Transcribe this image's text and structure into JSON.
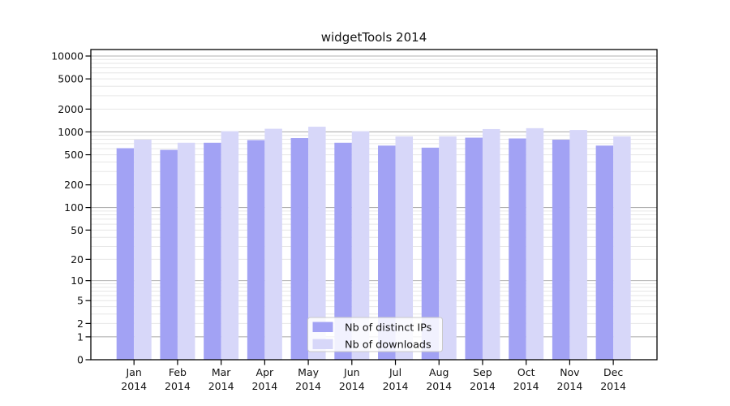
{
  "chart_data": {
    "type": "bar",
    "title": "widgetTools 2014",
    "categories": [
      "Jan 2014",
      "Feb 2014",
      "Mar 2014",
      "Apr 2014",
      "May 2014",
      "Jun 2014",
      "Jul 2014",
      "Aug 2014",
      "Sep 2014",
      "Oct 2014",
      "Nov 2014",
      "Dec 2014"
    ],
    "months": [
      "Jan",
      "Feb",
      "Mar",
      "Apr",
      "May",
      "Jun",
      "Jul",
      "Aug",
      "Sep",
      "Oct",
      "Nov",
      "Dec"
    ],
    "year_label": "2014",
    "series": [
      {
        "name": "Nb of distinct IPs",
        "color": "#a2a2f4",
        "values": [
          610,
          580,
          720,
          780,
          830,
          720,
          660,
          620,
          840,
          820,
          790,
          660
        ]
      },
      {
        "name": "Nb of downloads",
        "color": "#d7d7f9",
        "values": [
          790,
          720,
          1020,
          1100,
          1170,
          1020,
          870,
          870,
          1090,
          1120,
          1060,
          870
        ]
      }
    ],
    "y_ticks": [
      10000,
      5000,
      2000,
      1000,
      500,
      200,
      100,
      50,
      20,
      10,
      5,
      2,
      1,
      0
    ],
    "y_scale": "log10(value+1)",
    "ylim": [
      0,
      12000
    ],
    "xlabel": "",
    "ylabel": "",
    "grid": true,
    "legend_position": "inside-bottom-center",
    "colors": {
      "grid_major": "#b0b0b0",
      "grid_minor": "#e6e6e6",
      "axis": "#000000",
      "legend_border": "#c9c9c9",
      "legend_background": "#ffffff"
    }
  }
}
